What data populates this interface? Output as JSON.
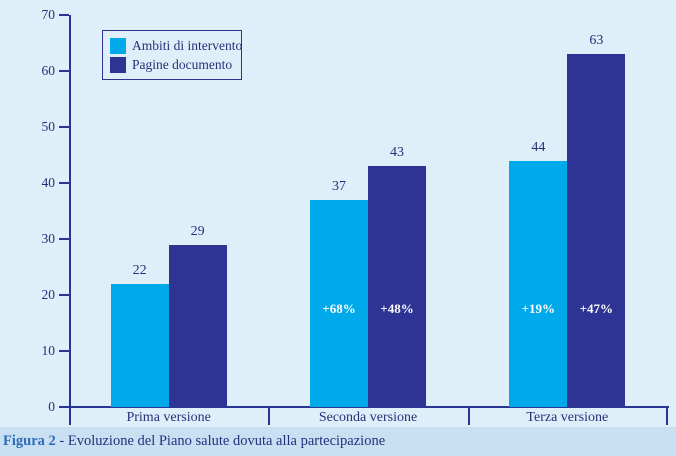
{
  "figure": {
    "caption": {
      "label": "Figura 2",
      "separator": " - ",
      "text": "Evoluzione del Piano salute dovuta alla partecipazione"
    }
  },
  "colors": {
    "background": "#dfeffa",
    "caption_strip": "#c9e0f2",
    "axis": "#2a3492",
    "text": "#273077",
    "annotation_text": "#ffffff",
    "caption_label": "#2f6db8"
  },
  "chart_data": {
    "type": "bar",
    "categories": [
      "Prima versione",
      "Seconda versione",
      "Terza versione"
    ],
    "series": [
      {
        "name": "Ambiti di intervento",
        "color": "#00aaea",
        "values": [
          22,
          37,
          44
        ],
        "bar_annotations": [
          "",
          "+68%",
          "+19%"
        ]
      },
      {
        "name": "Pagine documento",
        "color": "#2d3494",
        "values": [
          29,
          43,
          63
        ],
        "bar_annotations": [
          "",
          "+48%",
          "+47%"
        ]
      }
    ],
    "title": "",
    "xlabel": "",
    "ylabel": "",
    "ylim": [
      0,
      70
    ],
    "yticks": [
      0,
      10,
      20,
      30,
      40,
      50,
      60,
      70
    ],
    "grid": false,
    "legend_position": "top-left",
    "value_labels": true
  }
}
